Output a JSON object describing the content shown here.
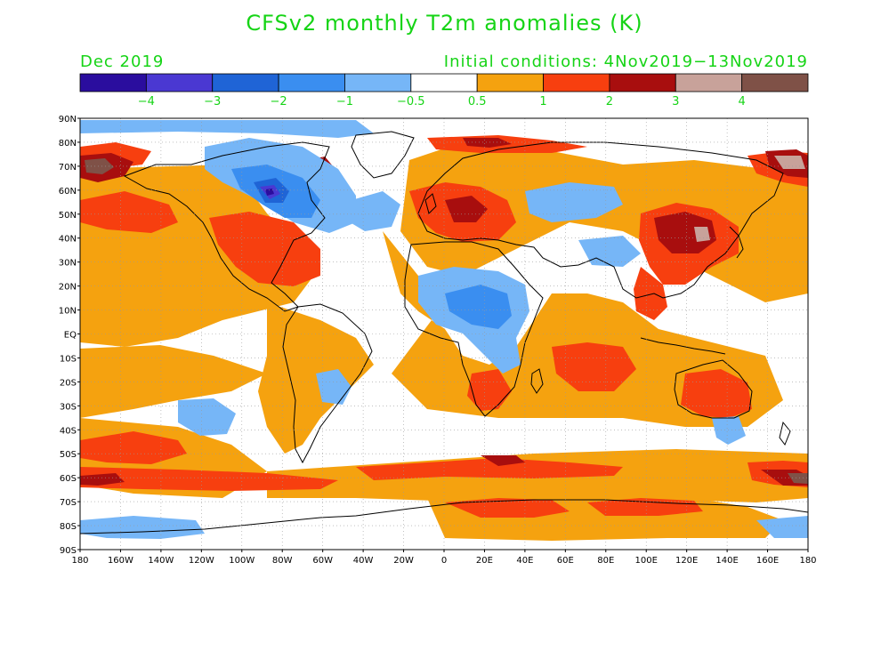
{
  "title": "CFSv2 monthly T2m anomalies (K)",
  "valid_month": "Dec 2019",
  "initial_conditions": "Initial conditions: 4Nov2019−13Nov2019",
  "colorbar": {
    "colors": [
      "#2a0d9e",
      "#4a38d2",
      "#1f64d6",
      "#3a8ef0",
      "#76b6f7",
      "#ffffff",
      "#f5a20f",
      "#f73f0f",
      "#a80e0e",
      "#c8a29a",
      "#7f5147"
    ],
    "labels": [
      "−4",
      "−3",
      "−2",
      "−1",
      "−0.5",
      "0.5",
      "1",
      "2",
      "3",
      "4"
    ]
  },
  "map": {
    "lat_labels": [
      "90N",
      "80N",
      "70N",
      "60N",
      "50N",
      "40N",
      "30N",
      "20N",
      "10N",
      "EQ",
      "10S",
      "20S",
      "30S",
      "40S",
      "50S",
      "60S",
      "70S",
      "80S",
      "90S"
    ],
    "lon_labels": [
      "180",
      "160W",
      "140W",
      "120W",
      "100W",
      "80W",
      "60W",
      "40W",
      "20W",
      "0",
      "20E",
      "40E",
      "60E",
      "80E",
      "100E",
      "120E",
      "140E",
      "160E",
      "180"
    ],
    "lon_range": [
      -180,
      180
    ],
    "lat_range": [
      -90,
      90
    ],
    "anomaly_regions": [
      {
        "region": "Arctic Siberia / Alaska",
        "level": 4
      },
      {
        "region": "Hudson Bay / central Canada",
        "level": -4
      },
      {
        "region": "Eastern Europe",
        "level": 2
      },
      {
        "region": "Eastern China",
        "level": 3
      },
      {
        "region": "West-central Africa",
        "level": -2
      },
      {
        "region": "Eastern Antarctic coast",
        "level": 1
      },
      {
        "region": "Southern Ocean 60S",
        "level": 2
      }
    ]
  }
}
